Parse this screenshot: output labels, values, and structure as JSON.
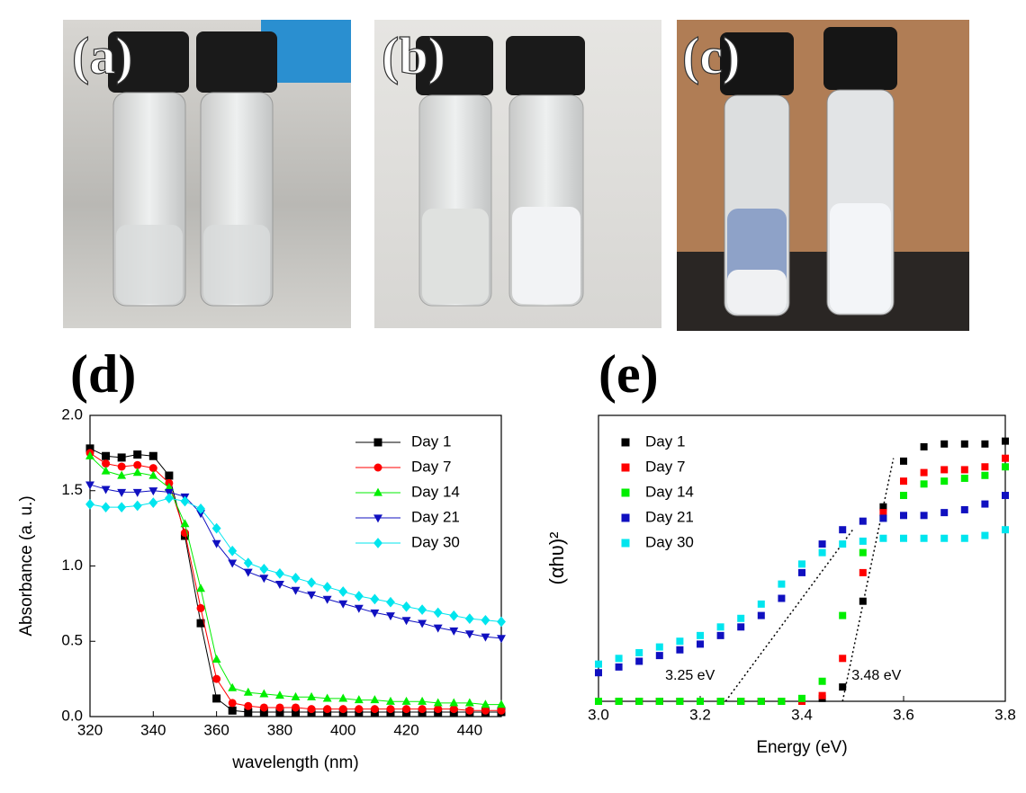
{
  "photos": [
    {
      "label": "(a)"
    },
    {
      "label": "(b)"
    },
    {
      "label": "(c)"
    }
  ],
  "chart_data": [
    {
      "type": "line",
      "panel_label": "(d)",
      "xlabel": "wavelength (nm)",
      "ylabel": "Absorbance (a. u.)",
      "xlim": [
        320,
        450
      ],
      "xticks": [
        320,
        340,
        360,
        380,
        400,
        420,
        440
      ],
      "ylim": [
        0,
        2
      ],
      "yticks": [
        {
          "value": 0,
          "label": "0.0"
        },
        0.5,
        {
          "value": 1,
          "label": "1.0"
        },
        1.5,
        {
          "value": 2,
          "label": "2.0"
        }
      ],
      "legend": "upper right",
      "x": [
        320,
        325,
        330,
        335,
        340,
        345,
        350,
        355,
        360,
        365,
        370,
        375,
        380,
        385,
        390,
        395,
        400,
        405,
        410,
        415,
        420,
        425,
        430,
        435,
        440,
        445,
        450
      ],
      "series": [
        {
          "name": "Day 1",
          "color": "#000000",
          "marker": "square",
          "values": [
            1.78,
            1.73,
            1.72,
            1.74,
            1.73,
            1.6,
            1.2,
            0.62,
            0.12,
            0.04,
            0.03,
            0.03,
            0.03,
            0.03,
            0.03,
            0.03,
            0.03,
            0.03,
            0.03,
            0.03,
            0.03,
            0.03,
            0.03,
            0.03,
            0.03,
            0.03,
            0.03
          ]
        },
        {
          "name": "Day 7",
          "color": "#ff0000",
          "marker": "circle",
          "values": [
            1.75,
            1.68,
            1.66,
            1.67,
            1.65,
            1.55,
            1.22,
            0.72,
            0.25,
            0.09,
            0.07,
            0.06,
            0.06,
            0.06,
            0.05,
            0.05,
            0.05,
            0.05,
            0.05,
            0.05,
            0.05,
            0.05,
            0.05,
            0.05,
            0.04,
            0.04,
            0.04
          ]
        },
        {
          "name": "Day 14",
          "color": "#00ee00",
          "marker": "triangle-up",
          "values": [
            1.73,
            1.63,
            1.6,
            1.62,
            1.6,
            1.52,
            1.28,
            0.85,
            0.38,
            0.19,
            0.16,
            0.15,
            0.14,
            0.13,
            0.13,
            0.12,
            0.12,
            0.11,
            0.11,
            0.1,
            0.1,
            0.1,
            0.09,
            0.09,
            0.09,
            0.08,
            0.08
          ]
        },
        {
          "name": "Day 21",
          "color": "#1010c0",
          "marker": "triangle-down",
          "values": [
            1.54,
            1.51,
            1.49,
            1.49,
            1.5,
            1.49,
            1.46,
            1.35,
            1.15,
            1.02,
            0.96,
            0.92,
            0.88,
            0.84,
            0.81,
            0.78,
            0.75,
            0.72,
            0.69,
            0.67,
            0.64,
            0.62,
            0.59,
            0.57,
            0.55,
            0.53,
            0.52
          ]
        },
        {
          "name": "Day 30",
          "color": "#00e5ee",
          "marker": "diamond",
          "values": [
            1.41,
            1.39,
            1.39,
            1.4,
            1.42,
            1.45,
            1.43,
            1.38,
            1.25,
            1.1,
            1.02,
            0.98,
            0.95,
            0.92,
            0.89,
            0.86,
            0.83,
            0.8,
            0.78,
            0.76,
            0.73,
            0.71,
            0.69,
            0.67,
            0.65,
            0.64,
            0.63
          ]
        }
      ]
    },
    {
      "type": "scatter",
      "panel_label": "(e)",
      "xlabel": "Energy (eV)",
      "ylabel": "(αhυ)²",
      "xlim": [
        3.0,
        3.8
      ],
      "xticks": [
        {
          "value": 3.0,
          "label": "3.0"
        },
        3.2,
        3.4,
        3.6,
        3.8
      ],
      "ylim": [
        0,
        1
      ],
      "legend": "upper left",
      "x": [
        3.0,
        3.04,
        3.08,
        3.12,
        3.16,
        3.2,
        3.24,
        3.28,
        3.32,
        3.36,
        3.4,
        3.44,
        3.48,
        3.52,
        3.56,
        3.6,
        3.64,
        3.68,
        3.72,
        3.76,
        3.8
      ],
      "series": [
        {
          "name": "Day 1",
          "color": "#000000",
          "marker": "square",
          "values": [
            0,
            0,
            0,
            0,
            0,
            0,
            0,
            0,
            0,
            0,
            0,
            0.01,
            0.05,
            0.35,
            0.68,
            0.84,
            0.89,
            0.9,
            0.9,
            0.9,
            0.91
          ]
        },
        {
          "name": "Day 7",
          "color": "#ff0000",
          "marker": "square",
          "values": [
            0,
            0,
            0,
            0,
            0,
            0,
            0,
            0,
            0,
            0,
            0,
            0.02,
            0.15,
            0.45,
            0.66,
            0.77,
            0.8,
            0.81,
            0.81,
            0.82,
            0.85
          ]
        },
        {
          "name": "Day 14",
          "color": "#00ee00",
          "marker": "square",
          "values": [
            0,
            0,
            0,
            0,
            0,
            0,
            0,
            0,
            0,
            0,
            0.01,
            0.07,
            0.3,
            0.52,
            0.64,
            0.72,
            0.76,
            0.77,
            0.78,
            0.79,
            0.82
          ]
        },
        {
          "name": "Day 21",
          "color": "#1010c0",
          "marker": "square",
          "values": [
            0.1,
            0.12,
            0.14,
            0.16,
            0.18,
            0.2,
            0.23,
            0.26,
            0.3,
            0.36,
            0.45,
            0.55,
            0.6,
            0.63,
            0.64,
            0.65,
            0.65,
            0.66,
            0.67,
            0.69,
            0.72
          ]
        },
        {
          "name": "Day 30",
          "color": "#00e5ee",
          "marker": "square",
          "values": [
            0.13,
            0.15,
            0.17,
            0.19,
            0.21,
            0.23,
            0.26,
            0.29,
            0.34,
            0.41,
            0.48,
            0.52,
            0.55,
            0.56,
            0.57,
            0.57,
            0.57,
            0.57,
            0.57,
            0.58,
            0.6
          ]
        }
      ],
      "fit_lines": [
        {
          "x": [
            3.25,
            3.5
          ],
          "y": [
            0,
            0.6
          ]
        },
        {
          "x": [
            3.48,
            3.58
          ],
          "y": [
            0,
            0.85
          ]
        }
      ],
      "annotations": [
        {
          "text": "3.25 eV",
          "x": 3.25
        },
        {
          "text": "3.48 eV",
          "x": 3.48
        }
      ]
    }
  ]
}
